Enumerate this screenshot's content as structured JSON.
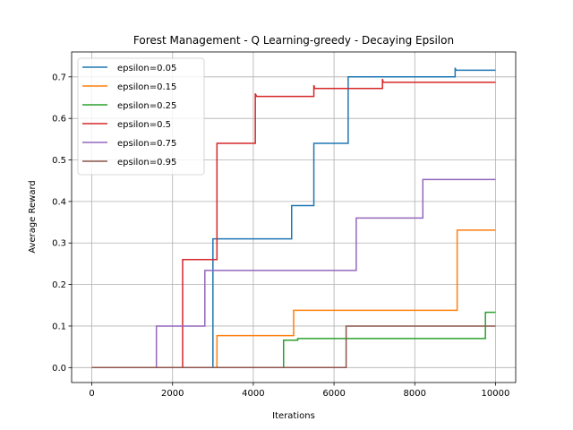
{
  "chart_data": {
    "type": "line",
    "title": "Forest Management - Q Learning-greedy - Decaying Epsilon",
    "xlabel": "Iterations",
    "ylabel": "Average Reward",
    "xlim": [
      -500,
      10500
    ],
    "ylim": [
      -0.036,
      0.76
    ],
    "xticks": [
      0,
      2000,
      4000,
      6000,
      8000,
      10000
    ],
    "yticks": [
      0.0,
      0.1,
      0.2,
      0.3,
      0.4,
      0.5,
      0.6,
      0.7
    ],
    "xtick_labels": [
      "0",
      "2000",
      "4000",
      "6000",
      "8000",
      "10000"
    ],
    "ytick_labels": [
      "0.0",
      "0.1",
      "0.2",
      "0.3",
      "0.4",
      "0.5",
      "0.6",
      "0.7"
    ],
    "grid": true,
    "legend_position": "top-left",
    "series": [
      {
        "name": "epsilon=0.05",
        "color": "#1f77b4",
        "x": [
          0,
          2930,
          2930,
          3000,
          3000,
          4950,
          4950,
          5500,
          5500,
          6350,
          6350,
          9000,
          9000,
          9020,
          10000
        ],
        "y": [
          0.0,
          0.0,
          0.0,
          0.0,
          0.31,
          0.31,
          0.39,
          0.39,
          0.54,
          0.54,
          0.7,
          0.7,
          0.722,
          0.716,
          0.716
        ]
      },
      {
        "name": "epsilon=0.15",
        "color": "#ff7f0e",
        "x": [
          0,
          3100,
          3100,
          5000,
          5000,
          9050,
          9050,
          10000
        ],
        "y": [
          0.0,
          0.0,
          0.077,
          0.077,
          0.138,
          0.138,
          0.331,
          0.331
        ]
      },
      {
        "name": "epsilon=0.25",
        "color": "#2ca02c",
        "x": [
          0,
          4750,
          4750,
          5100,
          5100,
          9750,
          9750,
          10000
        ],
        "y": [
          0.0,
          0.0,
          0.066,
          0.066,
          0.07,
          0.07,
          0.133,
          0.133
        ]
      },
      {
        "name": "epsilon=0.5",
        "color": "#d62728",
        "x": [
          0,
          2250,
          2250,
          3100,
          3100,
          4050,
          4050,
          4080,
          5500,
          5500,
          5520,
          7200,
          7200,
          7220,
          10000
        ],
        "y": [
          0.0,
          0.0,
          0.26,
          0.26,
          0.54,
          0.54,
          0.66,
          0.653,
          0.653,
          0.68,
          0.672,
          0.672,
          0.695,
          0.687,
          0.687
        ]
      },
      {
        "name": "epsilon=0.75",
        "color": "#9467bd",
        "x": [
          0,
          1600,
          1600,
          2800,
          2800,
          6550,
          6550,
          8200,
          8200,
          10000
        ],
        "y": [
          0.0,
          0.0,
          0.1,
          0.1,
          0.234,
          0.234,
          0.36,
          0.36,
          0.453,
          0.453
        ]
      },
      {
        "name": "epsilon=0.95",
        "color": "#8c564b",
        "x": [
          0,
          6300,
          6300,
          10000
        ],
        "y": [
          0.0,
          0.0,
          0.1,
          0.1
        ]
      }
    ]
  }
}
